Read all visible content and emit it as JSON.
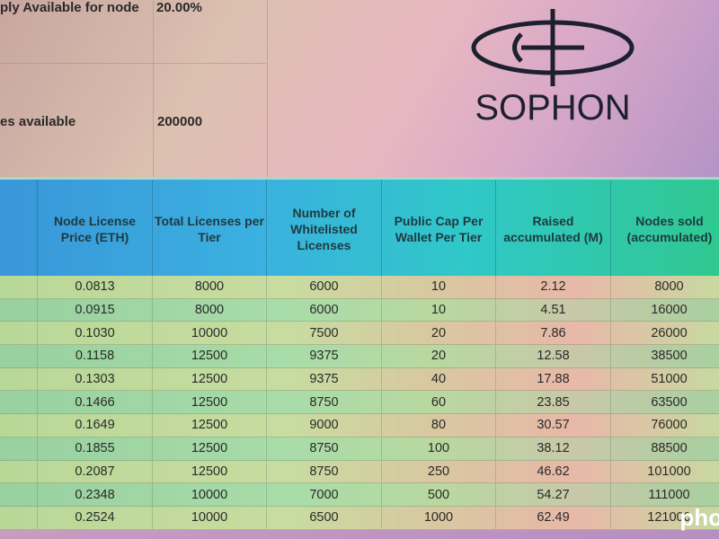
{
  "summary": {
    "supply_label": "ply Available for node",
    "supply_value": "20.00%",
    "licenses_label": "es available",
    "licenses_value": "200000"
  },
  "logo": {
    "text": "SOPHON"
  },
  "table": {
    "headers": [
      "",
      "Node License Price (ETH)",
      "Total Licenses per Tier",
      "Number of Whitelisted Licenses",
      "Public Cap Per Wallet Per Tier",
      "Raised accumulated (M)",
      "Nodes sold (accumulated)"
    ],
    "rows": [
      [
        "",
        "0.0813",
        "8000",
        "6000",
        "10",
        "2.12",
        "8000"
      ],
      [
        "",
        "0.0915",
        "8000",
        "6000",
        "10",
        "4.51",
        "16000"
      ],
      [
        "",
        "0.1030",
        "10000",
        "7500",
        "20",
        "7.86",
        "26000"
      ],
      [
        "",
        "0.1158",
        "12500",
        "9375",
        "20",
        "12.58",
        "38500"
      ],
      [
        "",
        "0.1303",
        "12500",
        "9375",
        "40",
        "17.88",
        "51000"
      ],
      [
        "",
        "0.1466",
        "12500",
        "8750",
        "60",
        "23.85",
        "63500"
      ],
      [
        "",
        "0.1649",
        "12500",
        "9000",
        "80",
        "30.57",
        "76000"
      ],
      [
        "",
        "0.1855",
        "12500",
        "8750",
        "100",
        "38.12",
        "88500"
      ],
      [
        "",
        "0.2087",
        "12500",
        "8750",
        "250",
        "46.62",
        "101000"
      ],
      [
        "",
        "0.2348",
        "10000",
        "7000",
        "500",
        "54.27",
        "111000"
      ],
      [
        "",
        "0.2524",
        "10000",
        "6500",
        "1000",
        "62.49",
        "121000"
      ]
    ]
  },
  "watermark": "pho"
}
